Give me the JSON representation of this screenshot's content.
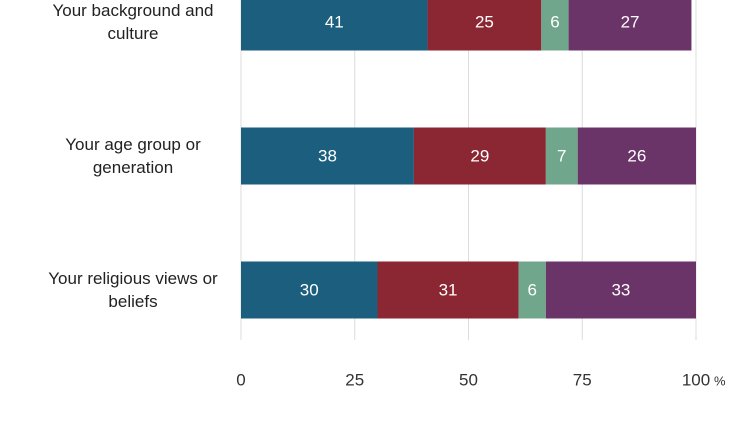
{
  "chart_data": {
    "type": "stacked-bar-horizontal",
    "categories": [
      "Your background and culture",
      "Your age group or generation",
      "Your religious views or beliefs"
    ],
    "series": [
      {
        "color": "#1b5e7e",
        "values": [
          41,
          38,
          30
        ]
      },
      {
        "color": "#8b2633",
        "values": [
          25,
          29,
          31
        ]
      },
      {
        "color": "#70a68b",
        "values": [
          6,
          7,
          6
        ]
      },
      {
        "color": "#6a3468",
        "values": [
          27,
          26,
          33
        ]
      }
    ],
    "xlim": [
      0,
      100
    ],
    "xticks": [
      0,
      25,
      50,
      75,
      100
    ],
    "xunit": "%",
    "grid": true
  }
}
